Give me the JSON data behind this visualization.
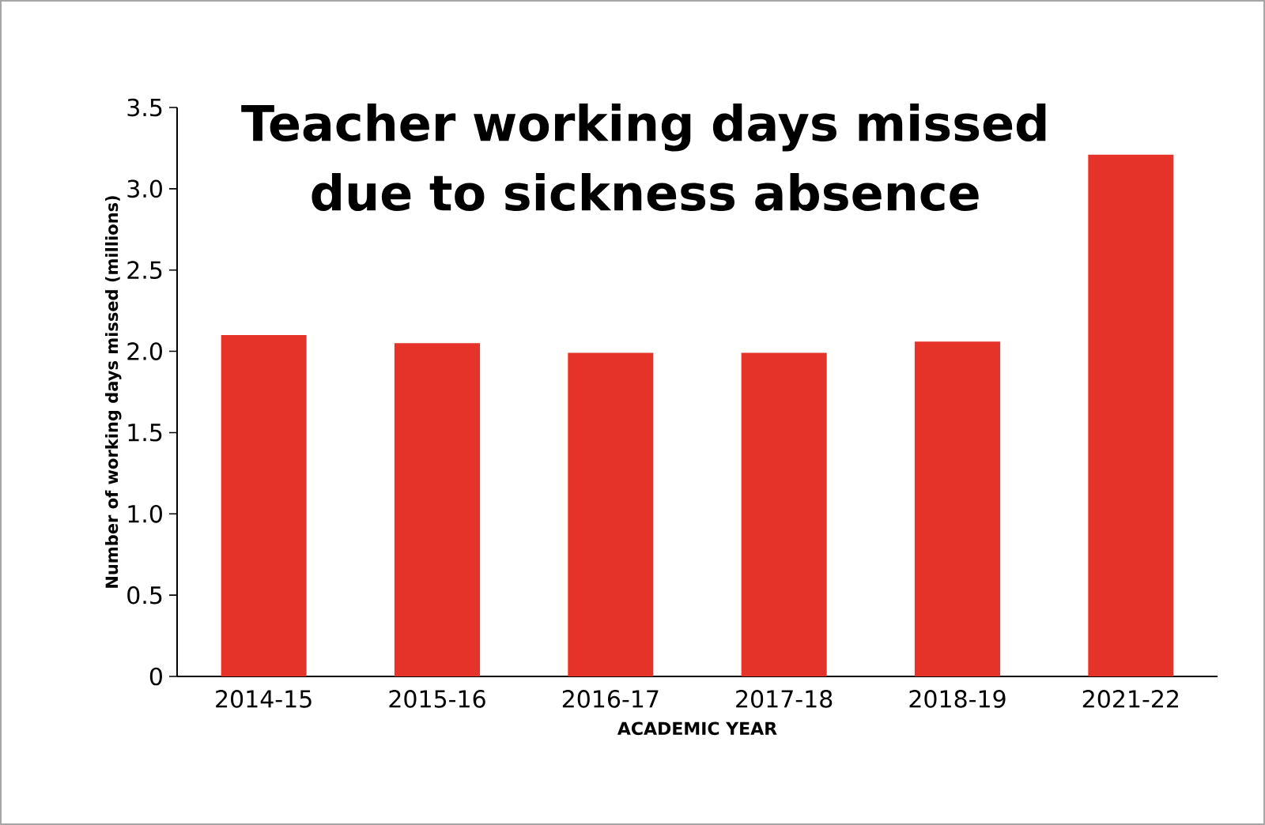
{
  "chart_data": {
    "type": "bar",
    "title": "Teacher working days missed due to sickness absence",
    "xlabel": "ACADEMIC YEAR",
    "ylabel": "Number of working days missed (millions)",
    "categories": [
      "2014-15",
      "2015-16",
      "2016-17",
      "2017-18",
      "2018-19",
      "2021-22"
    ],
    "values": [
      2.1,
      2.05,
      1.99,
      1.99,
      2.06,
      3.21
    ],
    "color": "#e5332a",
    "ylim": [
      0,
      3.5
    ],
    "yticks": [
      0,
      0.5,
      {
        "value": 1,
        "label": "1.0"
      },
      1.5,
      {
        "value": 2,
        "label": "2.0"
      },
      2.5,
      {
        "value": 3,
        "label": "3.0"
      },
      3.5
    ],
    "grid": false
  }
}
